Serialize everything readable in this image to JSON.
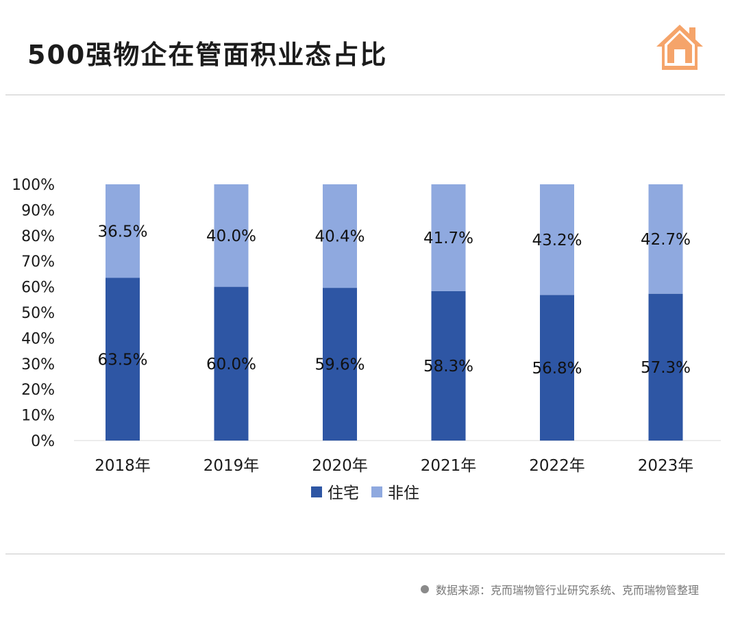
{
  "header": {
    "title": "500强物企在管面积业态占比",
    "logo_icon": "house-icon",
    "logo_color": "#F5A46A"
  },
  "footer": {
    "source": "数据来源：克而瑞物管行业研究系统、克而瑞物管整理"
  },
  "chart_data": {
    "type": "bar",
    "stacked": true,
    "percent": true,
    "categories": [
      "2018年",
      "2019年",
      "2020年",
      "2021年",
      "2022年",
      "2023年"
    ],
    "series": [
      {
        "name": "住宅",
        "values": [
          63.5,
          60.0,
          59.6,
          58.3,
          56.8,
          57.3
        ],
        "labels": [
          "63.5%",
          "60.0%",
          "59.6%",
          "58.3%",
          "56.8%",
          "57.3%"
        ],
        "color": "#2E56A4"
      },
      {
        "name": "非住",
        "values": [
          36.5,
          40.0,
          40.4,
          41.7,
          43.2,
          42.7
        ],
        "labels": [
          "36.5%",
          "40.0%",
          "40.4%",
          "41.7%",
          "43.2%",
          "42.7%"
        ],
        "color": "#8FA9DF"
      }
    ],
    "yticks": [
      "0%",
      "10%",
      "20%",
      "30%",
      "40%",
      "50%",
      "60%",
      "70%",
      "80%",
      "90%",
      "100%"
    ],
    "ylim": [
      0,
      100
    ],
    "legend_position": "bottom",
    "grid": false
  }
}
